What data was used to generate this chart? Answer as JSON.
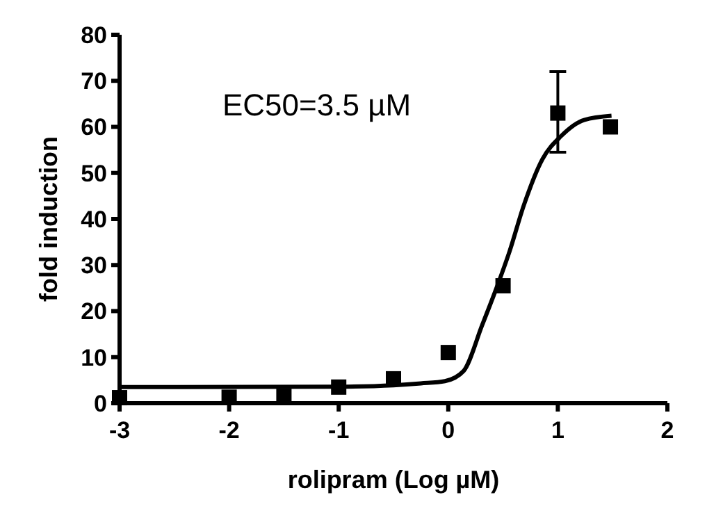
{
  "chart_data": {
    "type": "scatter",
    "xlabel": "rolipram (Log µM)",
    "ylabel": "fold induction",
    "xlim": [
      -3,
      2
    ],
    "xticks": [
      -3,
      -2,
      -1,
      0,
      1,
      2
    ],
    "ylim": [
      0,
      80
    ],
    "yticks": [
      0,
      10,
      20,
      30,
      40,
      50,
      60,
      70,
      80
    ],
    "grid": false,
    "annotations": [
      "EC50=3.5 µM"
    ],
    "series": [
      {
        "color": "#000000",
        "marker": "square",
        "x": [
          -3,
          -2,
          -1.5,
          -1,
          -0.5,
          0,
          0.5,
          1,
          1.48
        ],
        "values": [
          1.2,
          1.3,
          1.5,
          3.5,
          5.3,
          11,
          25.5,
          63,
          60
        ],
        "errors": [
          null,
          null,
          null,
          null,
          null,
          null,
          null,
          [
            54.5,
            72
          ],
          null
        ]
      },
      {
        "type": "line",
        "color": "#000000",
        "marker": "none",
        "line_style": "solid",
        "x": [
          -3,
          -1,
          -0.5,
          -0.25,
          -0.03,
          0.14,
          0.31,
          0.44,
          0.56,
          0.69,
          0.86,
          1.03,
          1.24,
          1.49
        ],
        "values": [
          3.5,
          3.6,
          3.9,
          4.3,
          4.8,
          7,
          17,
          25,
          33,
          43,
          53,
          58,
          61.5,
          62.4
        ]
      }
    ]
  }
}
